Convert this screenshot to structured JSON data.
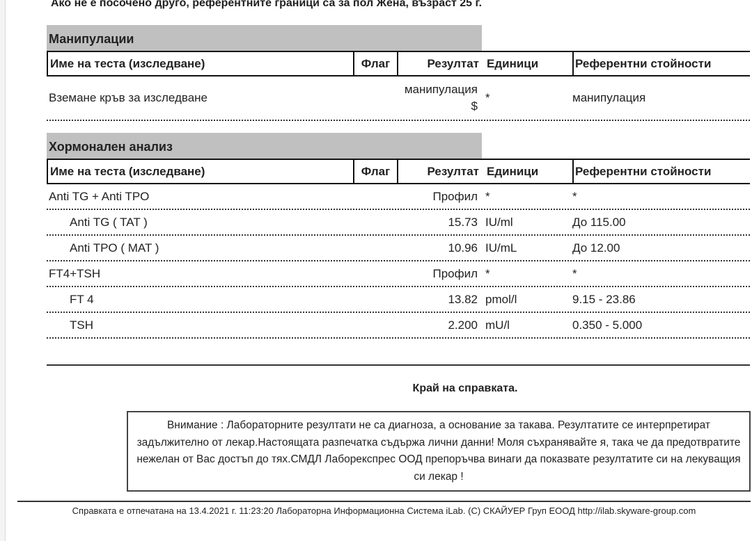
{
  "note": "Ако не е посочено друго, референтните граници са за пол Жена, възраст 25 г.",
  "columns": [
    "Име на теста (изследване)",
    "Флаг",
    "Резултат",
    "Единици",
    "Референтни стойности"
  ],
  "sections": [
    {
      "title": "Манипулации",
      "rows": [
        {
          "name": "Вземане кръв за изследване",
          "flag": "",
          "result": "манипулация $",
          "units": "*",
          "ref": "манипулация",
          "sub": false
        }
      ]
    },
    {
      "title": "Хормонален анализ",
      "rows": [
        {
          "name": "Anti TG + Anti TPO",
          "flag": "",
          "result": "Профил",
          "units": "*",
          "ref": "*",
          "sub": false
        },
        {
          "name": "Anti TG ( TAT )",
          "flag": "",
          "result": "15.73",
          "units": "IU/ml",
          "ref": "До 115.00",
          "sub": true
        },
        {
          "name": "Anti TPO ( MAT )",
          "flag": "",
          "result": "10.96",
          "units": "IU/mL",
          "ref": "До 12.00",
          "sub": true
        },
        {
          "name": "FT4+TSH",
          "flag": "",
          "result": "Профил",
          "units": "*",
          "ref": "*",
          "sub": false
        },
        {
          "name": "FT 4",
          "flag": "",
          "result": "13.82",
          "units": "pmol/l",
          "ref": "9.15 - 23.86",
          "sub": true
        },
        {
          "name": "TSH",
          "flag": "",
          "result": "2.200",
          "units": "mU/l",
          "ref": "0.350 - 5.000",
          "sub": true
        }
      ]
    }
  ],
  "end_text": "Край на справката.",
  "warning": "Внимание : Лабораторните резултати не са диагноза, а основание за такава. Резултатите се интерпретират задължително от лекар.Настоящата разпечатка съдържа лични данни! Моля съхранявайте я, така че да предотвратите нежелан от Вас достъп до тях.СМДЛ Лаборекспрес ООД препоръчва винаги да показвате резултатите си на лекуващия си лекар !",
  "footer": "Справката е отпечатана на 13.4.2021 г. 11:23:20 Лабораторна Информационна Система iLab. (C) СКАЙУЕР Груп ЕООД http://ilab.skyware-group.com"
}
